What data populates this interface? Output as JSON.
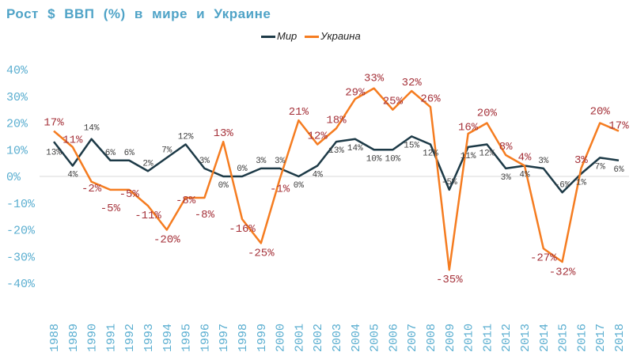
{
  "chart_data": {
    "type": "line",
    "title": "Рост $ ВВП (%) в мире и Украине",
    "x": [
      1988,
      1989,
      1990,
      1991,
      1992,
      1993,
      1994,
      1995,
      1996,
      1997,
      1998,
      1999,
      2000,
      2001,
      2002,
      2003,
      2004,
      2005,
      2006,
      2007,
      2008,
      2009,
      2010,
      2011,
      2012,
      2013,
      2014,
      2015,
      2016,
      2017,
      2018
    ],
    "ylim": [
      -40,
      40
    ],
    "yticks": [
      "40%",
      "30%",
      "20%",
      "10%",
      "0%",
      "-10%",
      "-20%",
      "-30%",
      "-40%"
    ],
    "ytick_values": [
      40,
      30,
      20,
      10,
      0,
      -10,
      -20,
      -30,
      -40
    ],
    "legend_position": "top-center",
    "grid": false,
    "series": [
      {
        "name": "Мир",
        "color": "#1d3a47",
        "values": [
          13,
          4,
          14,
          6,
          6,
          2,
          7,
          12,
          3,
          0,
          0,
          3,
          3,
          0,
          4,
          13,
          14,
          10,
          10,
          15,
          12,
          -5,
          11,
          12,
          3,
          4,
          3,
          -6,
          1,
          7,
          6
        ]
      },
      {
        "name": "Украина",
        "color": "#f57c20",
        "values": [
          17,
          11,
          -2,
          -5,
          -5,
          -11,
          -20,
          -8,
          -8,
          13,
          -16,
          -25,
          -1,
          21,
          12,
          18,
          29,
          33,
          25,
          32,
          26,
          -35,
          16,
          20,
          8,
          4,
          -27,
          -32,
          3,
          20,
          17
        ]
      }
    ]
  }
}
